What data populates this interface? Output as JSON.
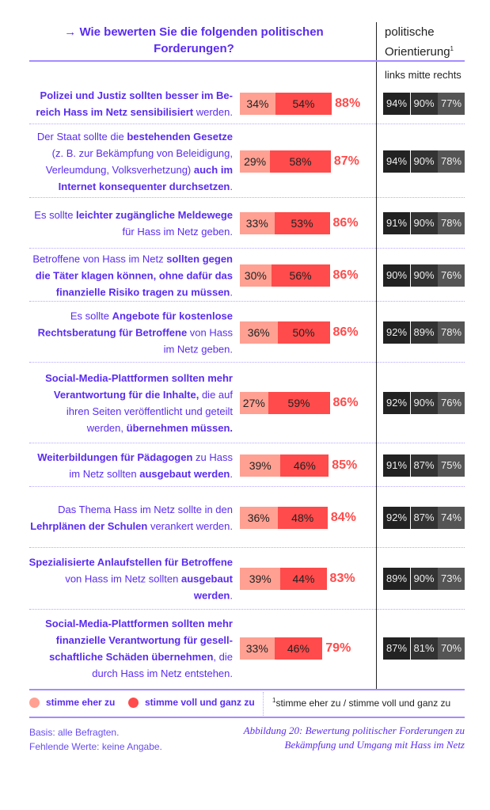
{
  "header": {
    "question_arrow": "→",
    "question": "Wie bewerten Sie die folgenden politischen Forderungen?",
    "orientation": "politische Orientierung",
    "orientation_sup": "1",
    "columns": "links mitte rechts"
  },
  "colors": {
    "eher": "#ffa092",
    "voll": "#ff4b4b",
    "links": "#222222",
    "mitte": "#333333",
    "rechts": "#555555",
    "accent": "#5a2cf0"
  },
  "chart_data": {
    "type": "bar",
    "stacked": true,
    "series_names": [
      "stimme eher zu",
      "stimme voll und ganz zu"
    ],
    "rows": [
      {
        "text": [
          {
            "t": "Polizei und Justiz sollten besser im Be­reich Hass im Netz sensibilisiert",
            "b": true
          },
          {
            "t": " werden.",
            "b": false
          }
        ],
        "eher": 34,
        "voll": 54,
        "total": 88,
        "links": 94,
        "mitte": 90,
        "rechts": 77
      },
      {
        "text": [
          {
            "t": "Der Staat sollte die ",
            "b": false
          },
          {
            "t": "bestehenden Gesetze",
            "b": true
          },
          {
            "t": " (z. B. zur Bekämpfung von Beleidigung, Verleumdung, Volksverhetzung) ",
            "b": false
          },
          {
            "t": "auch im Internet konsequenter durchsetzen",
            "b": true
          },
          {
            "t": ".",
            "b": false
          }
        ],
        "eher": 29,
        "voll": 58,
        "total": 87,
        "links": 94,
        "mitte": 90,
        "rechts": 78
      },
      {
        "text": [
          {
            "t": "Es sollte ",
            "b": false
          },
          {
            "t": "leichter zugängliche Meldewege",
            "b": true
          },
          {
            "t": " für Hass im Netz geben.",
            "b": false
          }
        ],
        "eher": 33,
        "voll": 53,
        "total": 86,
        "links": 91,
        "mitte": 90,
        "rechts": 78
      },
      {
        "text": [
          {
            "t": "Betroffene von Hass im Netz ",
            "b": false
          },
          {
            "t": "sollten ge­gen die Täter klagen können, ohne dafür das finanzielle Risiko tragen zu müssen",
            "b": true
          },
          {
            "t": ".",
            "b": false
          }
        ],
        "eher": 30,
        "voll": 56,
        "total": 86,
        "links": 90,
        "mitte": 90,
        "rechts": 76
      },
      {
        "text": [
          {
            "t": "Es sollte ",
            "b": false
          },
          {
            "t": "Angebote für kostenlose Rechtsberatung für Betroffene",
            "b": true
          },
          {
            "t": " von Hass im Netz geben.",
            "b": false
          }
        ],
        "eher": 36,
        "voll": 50,
        "total": 86,
        "links": 92,
        "mitte": 89,
        "rechts": 78
      },
      {
        "text": [
          {
            "t": "Social-Media-Plattformen sollten mehr Verantwortung für die Inhalte,",
            "b": true
          },
          {
            "t": " die auf ihren Seiten veröffentlicht und geteilt werden, ",
            "b": false
          },
          {
            "t": "übernehmen müssen.",
            "b": true
          }
        ],
        "eher": 27,
        "voll": 59,
        "total": 86,
        "links": 92,
        "mitte": 90,
        "rechts": 76
      },
      {
        "text": [
          {
            "t": "Weiterbildungen für Pädagogen",
            "b": true
          },
          {
            "t": " zu Hass im Netz sollten ",
            "b": false
          },
          {
            "t": "ausgebaut werden",
            "b": true
          },
          {
            "t": ".",
            "b": false
          }
        ],
        "eher": 39,
        "voll": 46,
        "total": 85,
        "links": 91,
        "mitte": 87,
        "rechts": 75
      },
      {
        "text": [
          {
            "t": "Das Thema Hass im Netz sollte in den ",
            "b": false
          },
          {
            "t": "Lehrplänen der Schulen",
            "b": true
          },
          {
            "t": " verankert werden.",
            "b": false
          }
        ],
        "eher": 36,
        "voll": 48,
        "total": 84,
        "links": 92,
        "mitte": 87,
        "rechts": 74
      },
      {
        "text": [
          {
            "t": "Spezialisierte Anlaufstellen für Betroffene",
            "b": true
          },
          {
            "t": " von Hass im Netz sollten ",
            "b": false
          },
          {
            "t": "ausgebaut werden",
            "b": true
          },
          {
            "t": ".",
            "b": false
          }
        ],
        "eher": 39,
        "voll": 44,
        "total": 83,
        "links": 89,
        "mitte": 90,
        "rechts": 73
      },
      {
        "text": [
          {
            "t": "Social-Media-Plattformen sollten mehr finanzielle Verantwortung für gesell­schaftliche Schäden übernehmen",
            "b": true
          },
          {
            "t": ", die durch Hass im Netz entstehen.",
            "b": false
          }
        ],
        "eher": 33,
        "voll": 46,
        "total": 79,
        "links": 87,
        "mitte": 81,
        "rechts": 70
      }
    ]
  },
  "legend": {
    "eher": "stimme eher zu",
    "voll": "stimme voll und ganz zu",
    "note_sup": "1",
    "note": "stimme eher zu / stimme voll und ganz zu"
  },
  "footer": {
    "basis": "Basis: alle Befragten.",
    "missing": "Fehlende Werte: keine Angabe.",
    "caption_1": "Abbildung 20: Bewertung politischer Forderungen zu",
    "caption_2": "Bekämpfung und Umgang mit Hass im Netz"
  }
}
